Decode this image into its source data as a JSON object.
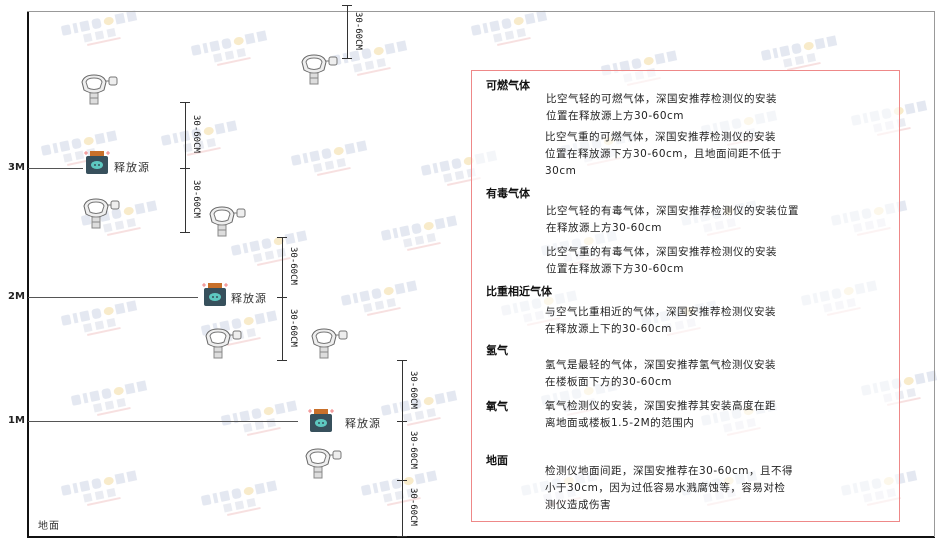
{
  "watermark": "SINGOAN 深国安",
  "levels": {
    "m3": "3M",
    "m2": "2M",
    "m1": "1M",
    "ground": "地面"
  },
  "source_label": "释放源",
  "dimension_label": "30-60CM",
  "colors": {
    "border": "#e88888",
    "source_body": "#37505c",
    "source_face": "#5ec8c0",
    "source_cap": "#c8702a"
  },
  "notes": {
    "combustible": {
      "title": "可燃气体",
      "light": [
        "比空气轻的可燃气体，深国安推荐检测仪的安装",
        "位置在释放源上方30-60cm"
      ],
      "heavy": [
        "比空气重的可燃气体，深国安推荐检测仪的安装",
        "位置在释放源下方30-60cm，且地面间距不低于",
        "30cm"
      ]
    },
    "toxic": {
      "title": "有毒气体",
      "light": [
        "比空气轻的有毒气体，深国安推荐检测仪的安装位置",
        "在释放源上方30-60cm"
      ],
      "heavy": [
        "比空气重的有毒气体，深国安推荐检测仪的安装",
        "位置在释放源下方30-60cm"
      ]
    },
    "similar": {
      "title": "比重相近气体",
      "text": [
        "与空气比重相近的气体，深国安推荐检测仪安装",
        "在释放源上下的30-60cm"
      ]
    },
    "hydrogen": {
      "title": "氢气",
      "text": [
        "氢气是最轻的气体，深国安推荐氢气检测仪安装",
        "在楼板面下方的30-60cm"
      ]
    },
    "oxygen": {
      "title": "氧气",
      "text": [
        "氧气检测仪的安装，深国安推荐其安装高度在距",
        "离地面或楼板1.5-2M的范围内"
      ]
    },
    "ground": {
      "title": "地面",
      "text": [
        "检测仪地面间距，深国安推荐在30-60cm，且不得",
        "小于30cm，因为过低容易水溅腐蚀等，容易对检",
        "测仪造成伤害"
      ]
    }
  }
}
